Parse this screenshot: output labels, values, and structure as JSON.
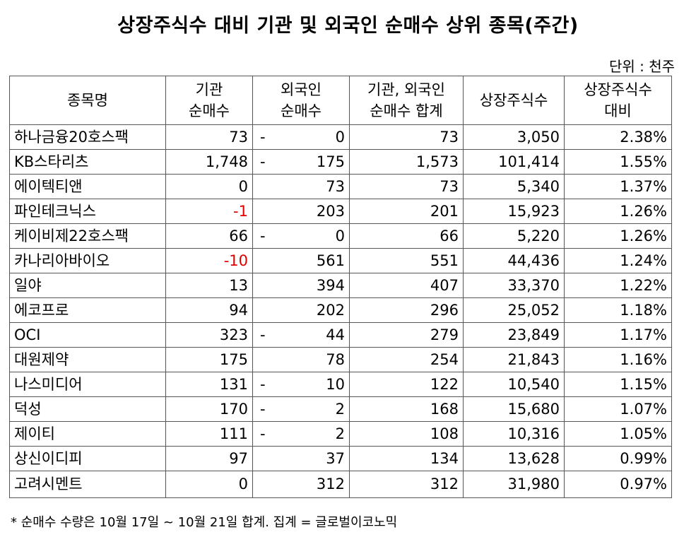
{
  "title": "상장주식수 대비 기관 및 외국인 순매수 상위 종목(주간)",
  "unit": "단위 : 천주",
  "headers": {
    "name": "종목명",
    "inst_1": "기관",
    "inst_2": "순매수",
    "foreign_1": "외국인",
    "foreign_2": "순매수",
    "sum_1": "기관, 외국인",
    "sum_2": "순매수 합계",
    "shares": "상장주식수",
    "ratio_1": "상장주식수",
    "ratio_2": "대비"
  },
  "rows": [
    {
      "name": "하나금융20호스팩",
      "inst": "73",
      "inst_neg": false,
      "foreign_sign": "-",
      "foreign": "0",
      "sum": "73",
      "shares": "3,050",
      "ratio": "2.38%"
    },
    {
      "name": "KB스타리츠",
      "inst": "1,748",
      "inst_neg": false,
      "foreign_sign": "-",
      "foreign": "175",
      "sum": "1,573",
      "shares": "101,414",
      "ratio": "1.55%"
    },
    {
      "name": "에이텍티앤",
      "inst": "0",
      "inst_neg": false,
      "foreign_sign": "",
      "foreign": "73",
      "sum": "73",
      "shares": "5,340",
      "ratio": "1.37%"
    },
    {
      "name": "파인테크닉스",
      "inst": "-1",
      "inst_neg": true,
      "foreign_sign": "",
      "foreign": "203",
      "sum": "201",
      "shares": "15,923",
      "ratio": "1.26%"
    },
    {
      "name": "케이비제22호스팩",
      "inst": "66",
      "inst_neg": false,
      "foreign_sign": "-",
      "foreign": "0",
      "sum": "66",
      "shares": "5,220",
      "ratio": "1.26%"
    },
    {
      "name": "카나리아바이오",
      "inst": "-10",
      "inst_neg": true,
      "foreign_sign": "",
      "foreign": "561",
      "sum": "551",
      "shares": "44,436",
      "ratio": "1.24%"
    },
    {
      "name": "일야",
      "inst": "13",
      "inst_neg": false,
      "foreign_sign": "",
      "foreign": "394",
      "sum": "407",
      "shares": "33,370",
      "ratio": "1.22%"
    },
    {
      "name": "에코프로",
      "inst": "94",
      "inst_neg": false,
      "foreign_sign": "",
      "foreign": "202",
      "sum": "296",
      "shares": "25,052",
      "ratio": "1.18%"
    },
    {
      "name": "OCI",
      "inst": "323",
      "inst_neg": false,
      "foreign_sign": "-",
      "foreign": "44",
      "sum": "279",
      "shares": "23,849",
      "ratio": "1.17%"
    },
    {
      "name": "대원제약",
      "inst": "175",
      "inst_neg": false,
      "foreign_sign": "",
      "foreign": "78",
      "sum": "254",
      "shares": "21,843",
      "ratio": "1.16%"
    },
    {
      "name": "나스미디어",
      "inst": "131",
      "inst_neg": false,
      "foreign_sign": "-",
      "foreign": "10",
      "sum": "122",
      "shares": "10,540",
      "ratio": "1.15%"
    },
    {
      "name": "덕성",
      "inst": "170",
      "inst_neg": false,
      "foreign_sign": "-",
      "foreign": "2",
      "sum": "168",
      "shares": "15,680",
      "ratio": "1.07%"
    },
    {
      "name": "제이티",
      "inst": "111",
      "inst_neg": false,
      "foreign_sign": "-",
      "foreign": "2",
      "sum": "108",
      "shares": "10,316",
      "ratio": "1.05%"
    },
    {
      "name": "상신이디피",
      "inst": "97",
      "inst_neg": false,
      "foreign_sign": "",
      "foreign": "37",
      "sum": "134",
      "shares": "13,628",
      "ratio": "0.99%"
    },
    {
      "name": "고려시멘트",
      "inst": "0",
      "inst_neg": false,
      "foreign_sign": "",
      "foreign": "312",
      "sum": "312",
      "shares": "31,980",
      "ratio": "0.97%"
    }
  ],
  "footnote": "* 순매수 수량은 10월 17일 ~ 10월 21일 합계.  집계 = 글로벌이코노믹",
  "colors": {
    "negative": "#e00000",
    "border": "#555555"
  }
}
